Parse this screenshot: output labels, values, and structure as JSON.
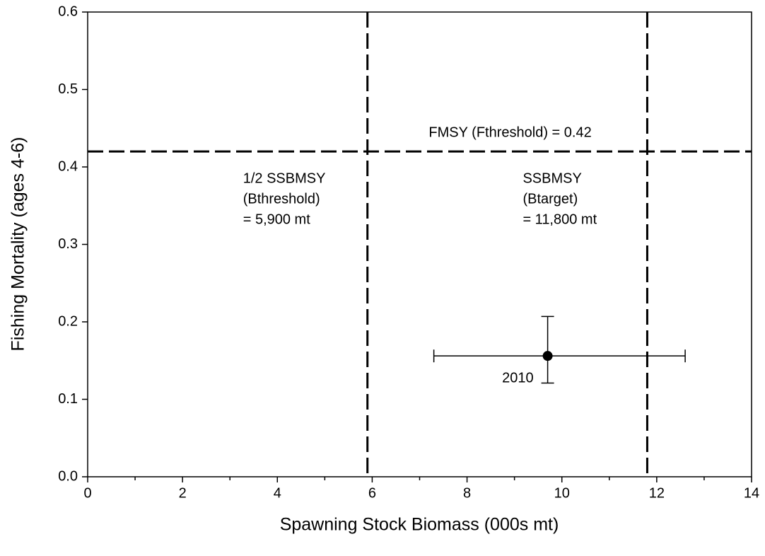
{
  "chart_data": {
    "type": "scatter",
    "x_label": "Spawning Stock Biomass (000s mt)",
    "y_label": "Fishing Mortality (ages 4-6)",
    "xlim": [
      0,
      14
    ],
    "ylim": [
      0,
      0.6
    ],
    "xticks": [
      0,
      2,
      4,
      6,
      8,
      10,
      12,
      14
    ],
    "xminor": [
      1,
      3,
      5,
      7,
      9,
      11,
      13
    ],
    "yticks": [
      {
        "value": 0,
        "label": "0.0"
      },
      0.1,
      0.2,
      0.3,
      0.4,
      0.5,
      0.6
    ],
    "series": [
      {
        "x": [
          9.7
        ],
        "values": [
          0.156
        ],
        "x_error": [
          [
            7.3,
            12.6
          ]
        ],
        "y_error": [
          [
            0.121,
            0.207
          ]
        ],
        "point_labels": [
          "2010"
        ],
        "color": "#000000"
      }
    ],
    "hlines": [
      {
        "value": 0.42,
        "label": "FMSY (Fthreshold) = 0.42"
      }
    ],
    "vlines": [
      {
        "value": 5.9,
        "label": [
          "1/2 SSBMSY",
          "(Bthreshold)",
          "= 5,900 mt"
        ]
      },
      {
        "value": 11.8,
        "label": [
          "SSBMSY",
          "(Btarget)",
          "= 11,800 mt"
        ]
      }
    ]
  }
}
